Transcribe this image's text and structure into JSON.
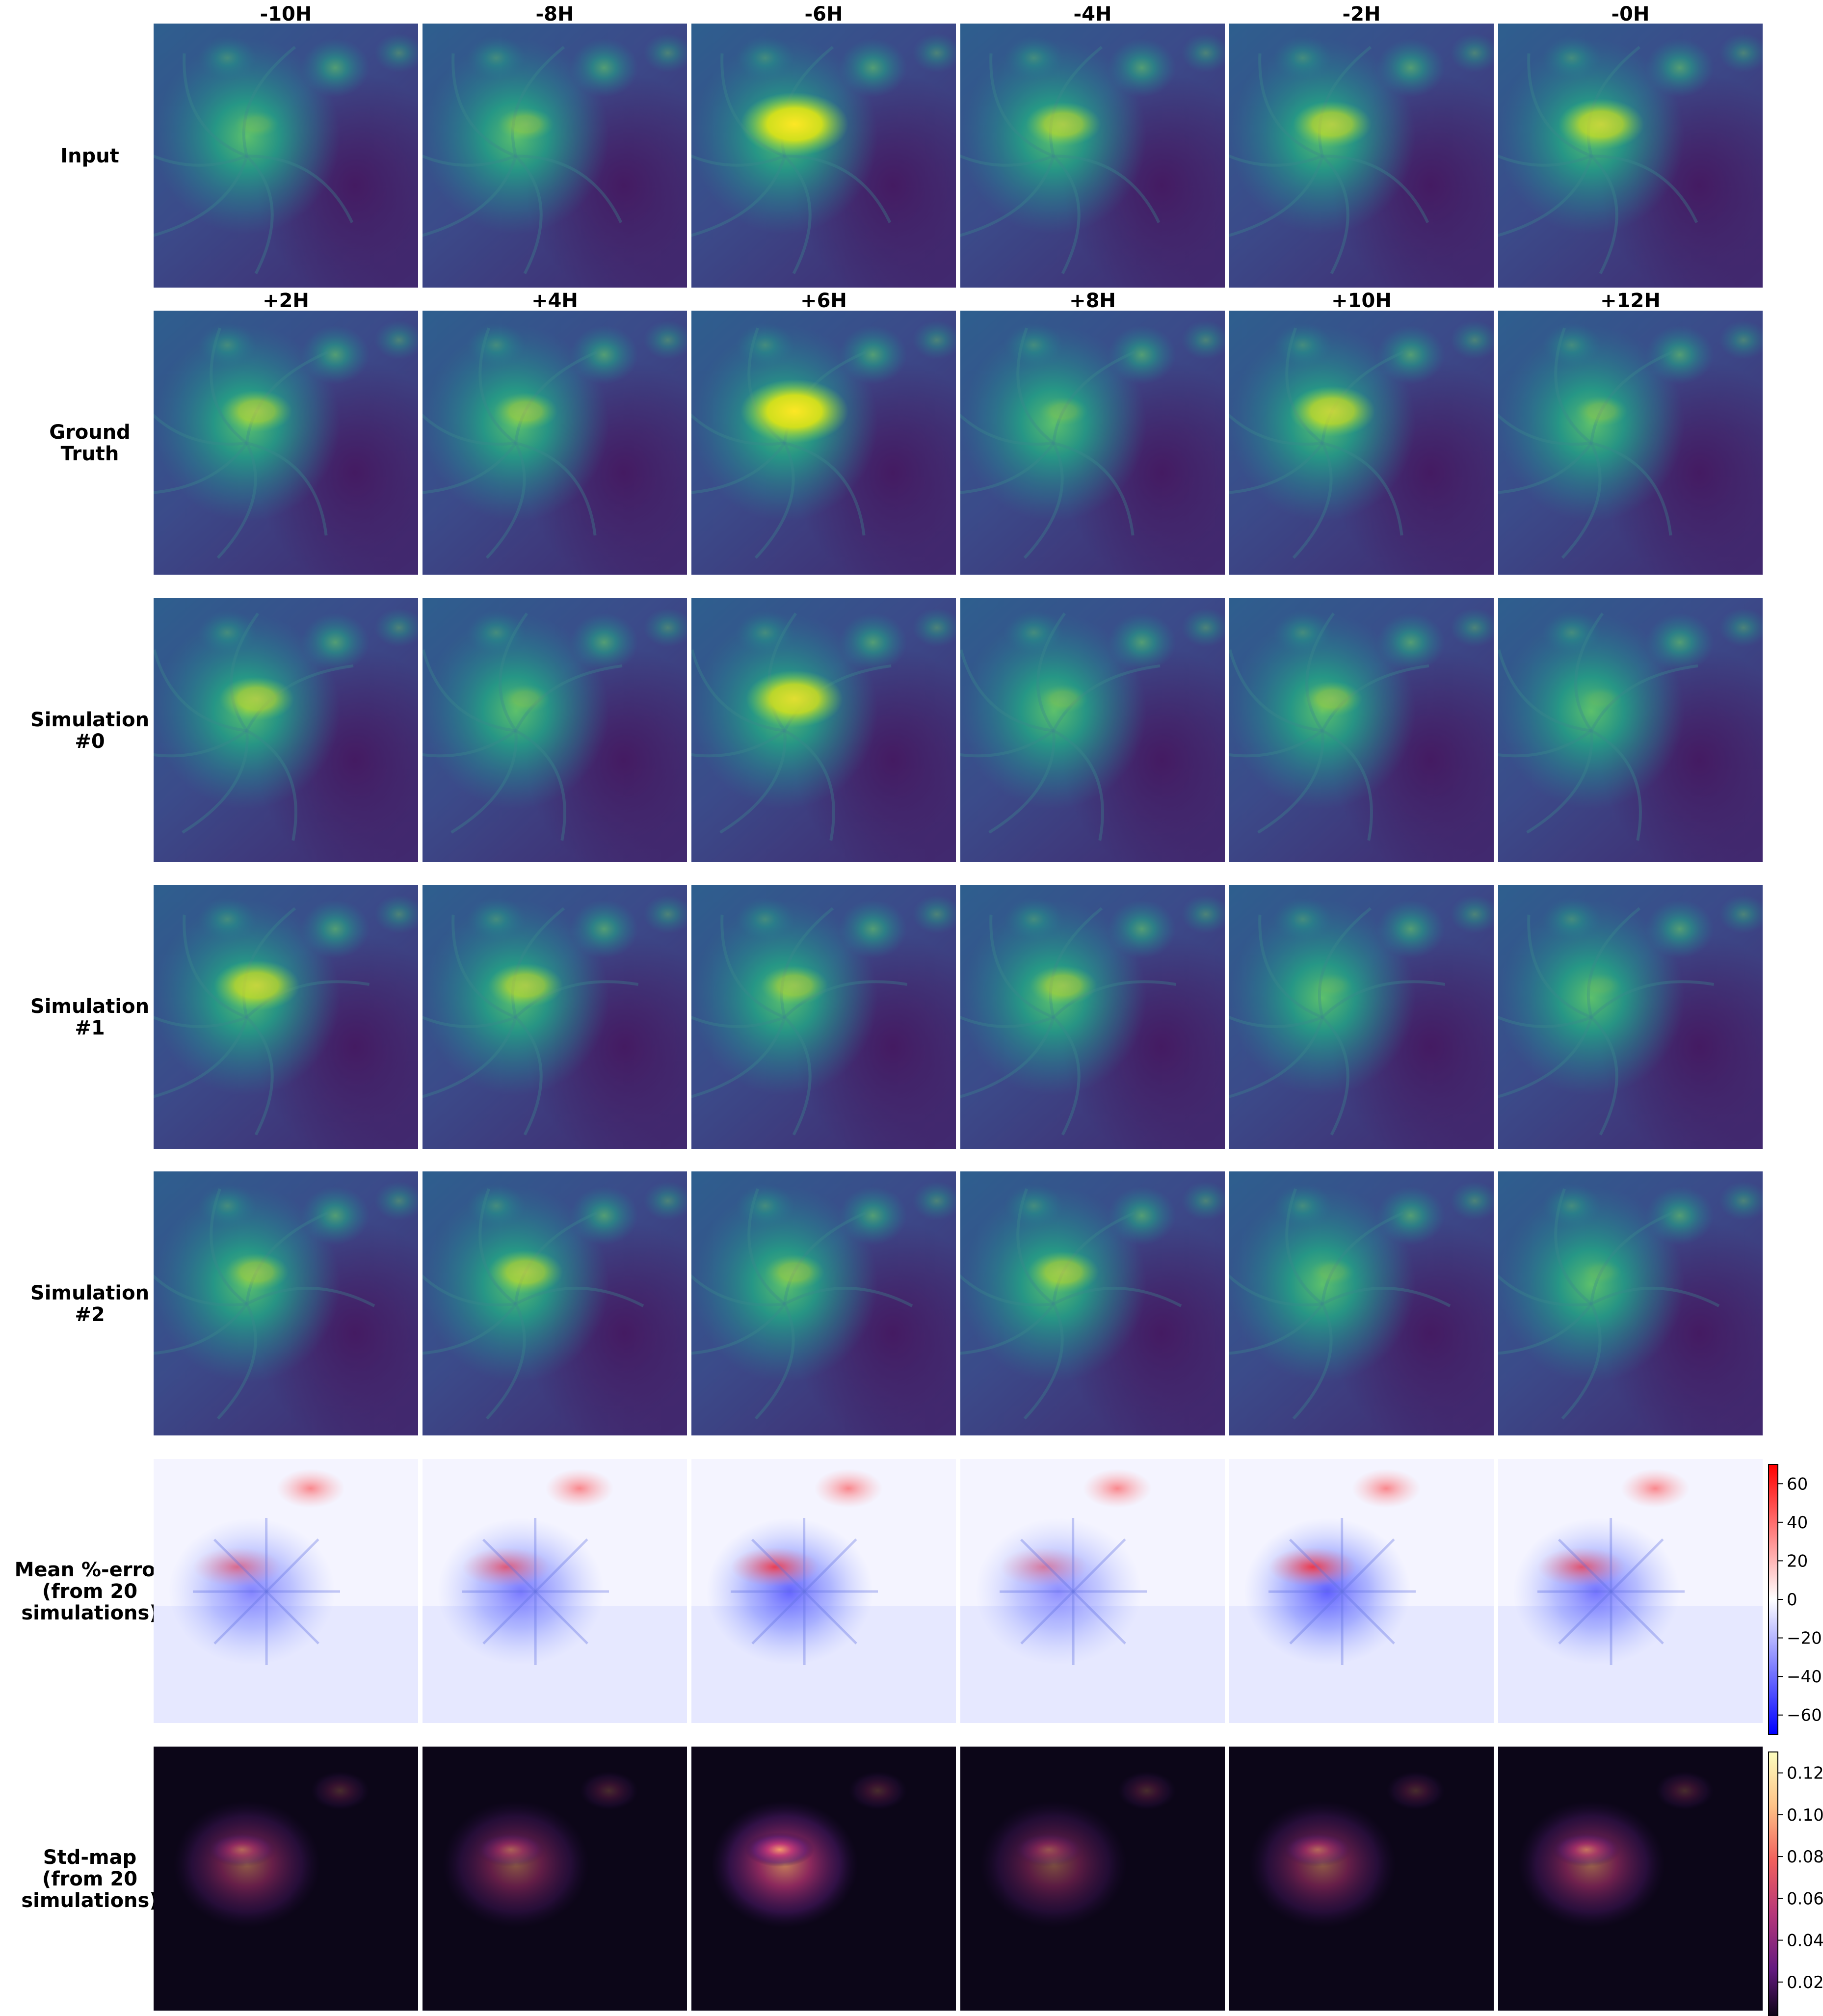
{
  "figure": {
    "input_times": [
      "-10H",
      "-8H",
      "-6H",
      "-4H",
      "-2H",
      "-0H"
    ],
    "forecast_times": [
      "+2H",
      "+4H",
      "+6H",
      "+8H",
      "+10H",
      "+12H"
    ],
    "row_labels": [
      [
        "Input"
      ],
      [
        "Ground",
        "Truth"
      ],
      [
        "Simulation",
        "#0"
      ],
      [
        "Simulation",
        "#1"
      ],
      [
        "Simulation",
        "#2"
      ],
      [
        "Mean %-error",
        "(from 20",
        "simulations)"
      ],
      [
        "Std-map",
        "(from 20",
        "simulations)"
      ]
    ],
    "error_colorbar": {
      "colormap": "bwr",
      "ticks": [
        "60",
        "40",
        "20",
        "0",
        "−20",
        "−40",
        "−60"
      ],
      "range": [
        -70,
        70
      ]
    },
    "std_colorbar": {
      "colormap": "magma",
      "ticks": [
        "0.12",
        "0.10",
        "0.08",
        "0.06",
        "0.04",
        "0.02"
      ],
      "range": [
        0,
        0.13
      ]
    },
    "panel_colormaps": {
      "intensity": "viridis",
      "error": "bwr",
      "std": "magma"
    },
    "flare_brightness": [
      [
        0.15,
        0.3,
        1.0,
        0.55,
        0.6,
        0.7
      ],
      [
        0.5,
        0.4,
        1.0,
        0.2,
        0.7,
        0.25
      ],
      [
        0.55,
        0.2,
        0.85,
        0.2,
        0.35,
        0.1
      ],
      [
        0.7,
        0.55,
        0.45,
        0.45,
        0.1,
        0.1
      ],
      [
        0.4,
        0.55,
        0.35,
        0.5,
        0.15,
        0.1
      ],
      [
        0.6,
        0.7,
        0.9,
        0.5,
        0.95,
        0.75
      ],
      [
        0.5,
        0.45,
        0.95,
        0.35,
        0.5,
        0.6
      ]
    ]
  }
}
